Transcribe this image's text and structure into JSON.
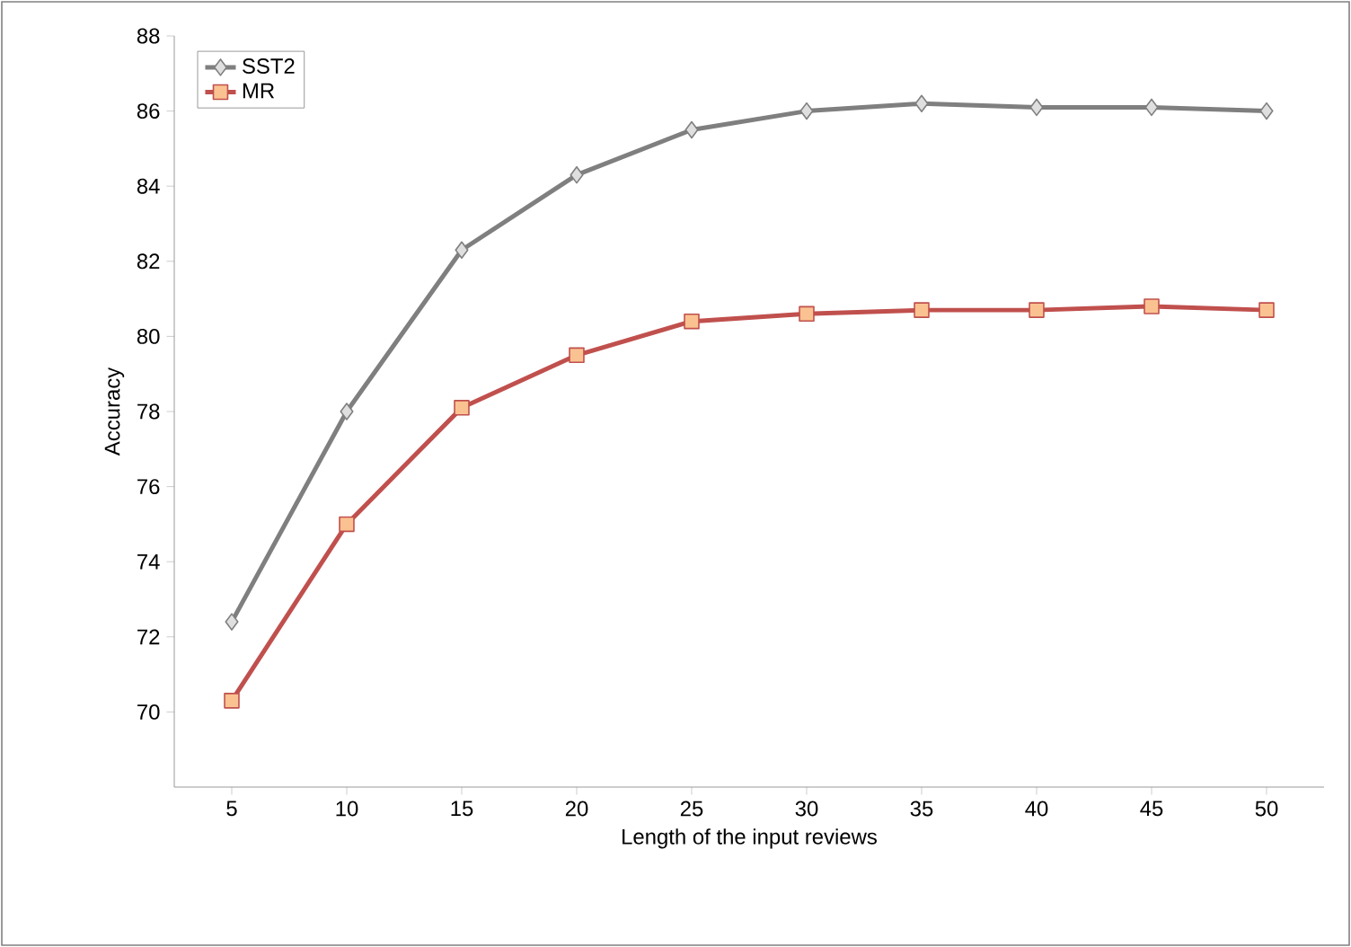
{
  "chart_data": {
    "type": "line",
    "xlabel": "Length of the input reviews",
    "ylabel": "Accuracy",
    "categories": [
      "5",
      "10",
      "15",
      "20",
      "25",
      "30",
      "35",
      "40",
      "45",
      "50"
    ],
    "series": [
      {
        "name": "SST2",
        "color": "#7f7f7f",
        "marker": "diamond",
        "values": [
          72.4,
          78.0,
          82.3,
          84.3,
          85.5,
          86.0,
          86.2,
          86.1,
          86.1,
          86.0
        ]
      },
      {
        "name": "MR",
        "color": "#c0504d",
        "marker": "square",
        "values": [
          70.3,
          75.0,
          78.1,
          79.5,
          80.4,
          80.6,
          80.7,
          80.7,
          80.8,
          80.7
        ]
      }
    ],
    "ylim": [
      68,
      88
    ],
    "yticks": [
      70,
      72,
      74,
      76,
      78,
      80,
      82,
      84,
      86,
      88
    ],
    "grid": false,
    "legend": "top left"
  }
}
